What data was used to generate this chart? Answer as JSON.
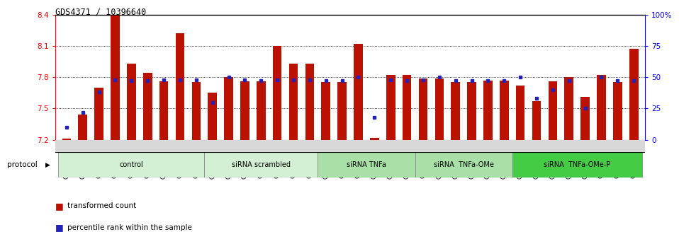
{
  "title": "GDS4371 / 10396640",
  "samples": [
    "GSM790907",
    "GSM790908",
    "GSM790909",
    "GSM790910",
    "GSM790911",
    "GSM790912",
    "GSM790913",
    "GSM790914",
    "GSM790915",
    "GSM790916",
    "GSM790917",
    "GSM790918",
    "GSM790919",
    "GSM790920",
    "GSM790921",
    "GSM790922",
    "GSM790923",
    "GSM790924",
    "GSM790925",
    "GSM790926",
    "GSM790927",
    "GSM790928",
    "GSM790929",
    "GSM790930",
    "GSM790931",
    "GSM790932",
    "GSM790933",
    "GSM790934",
    "GSM790935",
    "GSM790936",
    "GSM790937",
    "GSM790938",
    "GSM790939",
    "GSM790940",
    "GSM790941",
    "GSM790942"
  ],
  "bar_values": [
    7.21,
    7.44,
    7.7,
    8.39,
    7.93,
    7.84,
    7.76,
    8.22,
    7.75,
    7.65,
    7.8,
    7.76,
    7.76,
    8.1,
    7.93,
    7.93,
    7.75,
    7.75,
    8.12,
    7.22,
    7.82,
    7.82,
    7.79,
    7.79,
    7.75,
    7.75,
    7.77,
    7.77,
    7.72,
    7.57,
    7.76,
    7.8,
    7.61,
    7.82,
    7.75,
    8.07
  ],
  "percentile_values": [
    10,
    22,
    38,
    48,
    47,
    47,
    48,
    48,
    48,
    30,
    50,
    48,
    47,
    48,
    48,
    48,
    47,
    47,
    50,
    18,
    48,
    47,
    48,
    50,
    47,
    47,
    47,
    47,
    50,
    33,
    40,
    47,
    25,
    50,
    47,
    47
  ],
  "groups": [
    {
      "label": "control",
      "start": 0,
      "end": 9,
      "color": "#d4f0d4"
    },
    {
      "label": "siRNA scrambled",
      "start": 9,
      "end": 16,
      "color": "#d4f0d4"
    },
    {
      "label": "siRNA TNFa",
      "start": 16,
      "end": 22,
      "color": "#a8e0a8"
    },
    {
      "label": "siRNA  TNFa-OMe",
      "start": 22,
      "end": 28,
      "color": "#a8e0a8"
    },
    {
      "label": "siRNA  TNFa-OMe-P",
      "start": 28,
      "end": 36,
      "color": "#44cc44"
    }
  ],
  "ylim_left": [
    7.2,
    8.4
  ],
  "ylim_right": [
    0,
    100
  ],
  "yticks_left": [
    7.2,
    7.5,
    7.8,
    8.1,
    8.4
  ],
  "yticks_right": [
    0,
    25,
    50,
    75,
    100
  ],
  "bar_color": "#bb1100",
  "dot_color": "#2222bb",
  "bar_width": 0.55
}
